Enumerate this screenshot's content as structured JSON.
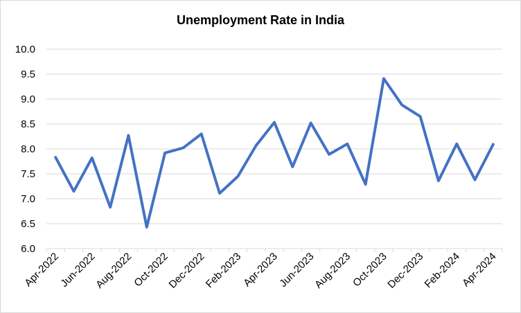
{
  "chart_data": {
    "type": "line",
    "title": "Unemployment Rate in India",
    "xlabel": "",
    "ylabel": "",
    "ylim": [
      6.0,
      10.0
    ],
    "y_ticks": [
      "6.0",
      "6.5",
      "7.0",
      "7.5",
      "8.0",
      "8.5",
      "9.0",
      "9.5",
      "10.0"
    ],
    "x": [
      "Apr-2022",
      "May-2022",
      "Jun-2022",
      "Jul-2022",
      "Aug-2022",
      "Sep-2022",
      "Oct-2022",
      "Nov-2022",
      "Dec-2022",
      "Jan-2023",
      "Feb-2023",
      "Mar-2023",
      "Apr-2023",
      "May-2023",
      "Jun-2023",
      "Jul-2023",
      "Aug-2023",
      "Sep-2023",
      "Oct-2023",
      "Nov-2023",
      "Dec-2023",
      "Jan-2024",
      "Feb-2024",
      "Mar-2024",
      "Apr-2024"
    ],
    "x_tick_labels": [
      "Apr-2022",
      "Jun-2022",
      "Aug-2022",
      "Oct-2022",
      "Dec-2022",
      "Feb-2023",
      "Apr-2023",
      "Jun-2023",
      "Aug-2023",
      "Oct-2023",
      "Dec-2023",
      "Feb-2024",
      "Apr-2024"
    ],
    "series": [
      {
        "values": [
          7.83,
          7.15,
          7.82,
          6.83,
          8.27,
          6.43,
          7.92,
          8.02,
          8.3,
          7.11,
          7.45,
          8.07,
          8.53,
          7.64,
          8.52,
          7.89,
          8.1,
          7.29,
          9.41,
          8.88,
          8.65,
          7.36,
          8.1,
          7.38,
          8.09
        ],
        "color": "#4472c4"
      }
    ],
    "grid": "horizontal",
    "legend": "none"
  }
}
